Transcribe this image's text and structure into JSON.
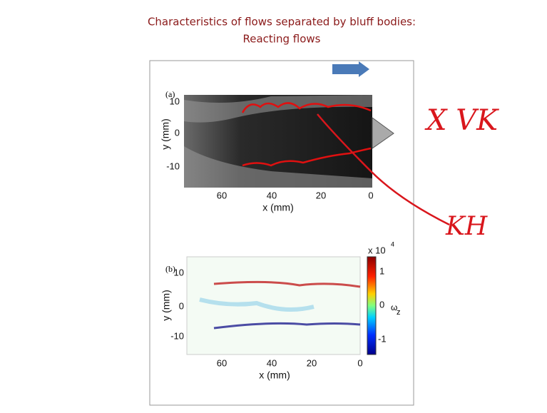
{
  "slide": {
    "title": [
      "Characteristics of flows separated by bluff bodies:",
      "Reacting flows"
    ],
    "panels": [
      {
        "label": "(a)",
        "x_label": "x (mm)",
        "y_label": "y (mm)",
        "x_ticks": [
          "60",
          "40",
          "20",
          "0"
        ],
        "y_ticks": [
          "10",
          "0",
          "-10"
        ]
      },
      {
        "label": "(b)",
        "x_label": "x (mm)",
        "y_label": "y (mm)",
        "x_ticks": [
          "60",
          "40",
          "20",
          "0"
        ],
        "y_ticks": [
          "10",
          "0",
          "-10"
        ],
        "colorbar": {
          "scale": "x 10",
          "exponent": "4",
          "ticks": [
            "1",
            "0",
            "-1"
          ],
          "symbol": "ω",
          "subscript": "z"
        }
      }
    ],
    "annotations": [
      "X VK",
      "KH"
    ]
  }
}
